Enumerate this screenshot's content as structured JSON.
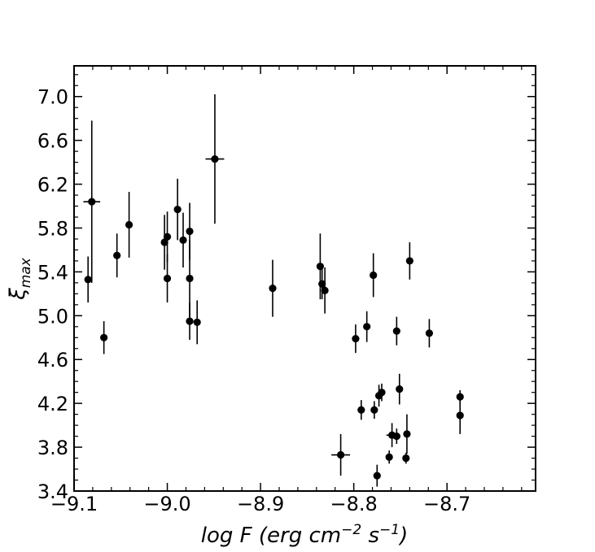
{
  "chart_data": {
    "type": "scatter",
    "xlabel": "log F (erg cm",
    "xlabel_sup1": "−2",
    "xlabel_mid": " s",
    "xlabel_sup2": "−1",
    "xlabel_end": ")",
    "ylabel": "ξ",
    "ylabel_sub": "max",
    "xlim": [
      -9.1,
      -8.605
    ],
    "ylim": [
      3.4,
      7.28
    ],
    "x_ticks": [
      -9.1,
      -9.0,
      -8.9,
      -8.8,
      -8.7
    ],
    "x_tick_labels": [
      "−9.1",
      "−9.0",
      "−8.9",
      "−8.8",
      "−8.7"
    ],
    "y_ticks": [
      3.4,
      3.8,
      4.2,
      4.6,
      5.0,
      5.4,
      5.8,
      6.2,
      6.6,
      7.0
    ],
    "y_tick_labels": [
      "3.4",
      "3.8",
      "4.2",
      "4.6",
      "5.0",
      "5.4",
      "5.8",
      "6.2",
      "6.6",
      "7.0"
    ],
    "grid": false,
    "marker_color": "#000000",
    "points": [
      {
        "x": -9.085,
        "y": 5.33,
        "yerr": 0.21,
        "xerr": 0
      },
      {
        "x": -9.081,
        "y": 6.04,
        "yerr": 0.74,
        "xerr": 0.009
      },
      {
        "x": -9.068,
        "y": 4.8,
        "yerr": 0.15,
        "xerr": 0
      },
      {
        "x": -9.054,
        "y": 5.55,
        "yerr": 0.2,
        "xerr": 0
      },
      {
        "x": -9.041,
        "y": 5.83,
        "yerr": 0.3,
        "xerr": 0
      },
      {
        "x": -9.003,
        "y": 5.67,
        "yerr": 0.25,
        "xerr": 0
      },
      {
        "x": -9.0,
        "y": 5.72,
        "yerr": 0.23,
        "xerr": 0
      },
      {
        "x": -9.0,
        "y": 5.34,
        "yerr": 0.22,
        "xerr": 0
      },
      {
        "x": -8.989,
        "y": 5.97,
        "yerr": 0.28,
        "xerr": 0
      },
      {
        "x": -8.983,
        "y": 5.69,
        "yerr": 0.25,
        "xerr": 0
      },
      {
        "x": -8.976,
        "y": 5.77,
        "yerr": 0.26,
        "xerr": 0
      },
      {
        "x": -8.976,
        "y": 5.34,
        "yerr": 0.35,
        "xerr": 0
      },
      {
        "x": -8.976,
        "y": 4.95,
        "yerr": 0.17,
        "xerr": 0
      },
      {
        "x": -8.968,
        "y": 4.94,
        "yerr": 0.2,
        "xerr": 0
      },
      {
        "x": -8.949,
        "y": 6.43,
        "yerr": 0.59,
        "xerr": 0.01
      },
      {
        "x": -8.887,
        "y": 5.25,
        "yerr": 0.26,
        "xerr": 0
      },
      {
        "x": -8.836,
        "y": 5.45,
        "yerr": 0.3,
        "xerr": 0
      },
      {
        "x": -8.834,
        "y": 5.29,
        "yerr": 0.14,
        "xerr": 0
      },
      {
        "x": -8.831,
        "y": 5.23,
        "yerr": 0.21,
        "xerr": 0
      },
      {
        "x": -8.814,
        "y": 3.73,
        "yerr": 0.19,
        "xerr": 0.01
      },
      {
        "x": -8.798,
        "y": 4.79,
        "yerr": 0.13,
        "xerr": 0
      },
      {
        "x": -8.792,
        "y": 4.14,
        "yerr": 0.09,
        "xerr": 0
      },
      {
        "x": -8.786,
        "y": 4.9,
        "yerr": 0.14,
        "xerr": 0
      },
      {
        "x": -8.779,
        "y": 5.37,
        "yerr": 0.2,
        "xerr": 0
      },
      {
        "x": -8.778,
        "y": 4.14,
        "yerr": 0.08,
        "xerr": 0
      },
      {
        "x": -8.775,
        "y": 3.54,
        "yerr": 0.1,
        "xerr": 0
      },
      {
        "x": -8.773,
        "y": 4.27,
        "yerr": 0.1,
        "xerr": 0
      },
      {
        "x": -8.77,
        "y": 4.3,
        "yerr": 0.08,
        "xerr": 0
      },
      {
        "x": -8.762,
        "y": 3.71,
        "yerr": 0.06,
        "xerr": 0
      },
      {
        "x": -8.759,
        "y": 3.91,
        "yerr": 0.11,
        "xerr": 0.006
      },
      {
        "x": -8.754,
        "y": 3.9,
        "yerr": 0.07,
        "xerr": 0.004
      },
      {
        "x": -8.754,
        "y": 4.86,
        "yerr": 0.13,
        "xerr": 0
      },
      {
        "x": -8.751,
        "y": 4.33,
        "yerr": 0.14,
        "xerr": 0
      },
      {
        "x": -8.744,
        "y": 3.7,
        "yerr": 0.05,
        "xerr": 0
      },
      {
        "x": -8.743,
        "y": 3.92,
        "yerr": 0.18,
        "xerr": 0
      },
      {
        "x": -8.74,
        "y": 5.5,
        "yerr": 0.17,
        "xerr": 0
      },
      {
        "x": -8.719,
        "y": 4.84,
        "yerr": 0.13,
        "xerr": 0
      },
      {
        "x": -8.686,
        "y": 4.26,
        "yerr": 0.06,
        "xerr": 0
      },
      {
        "x": -8.686,
        "y": 4.09,
        "yerr": 0.17,
        "xerr": 0
      }
    ]
  }
}
